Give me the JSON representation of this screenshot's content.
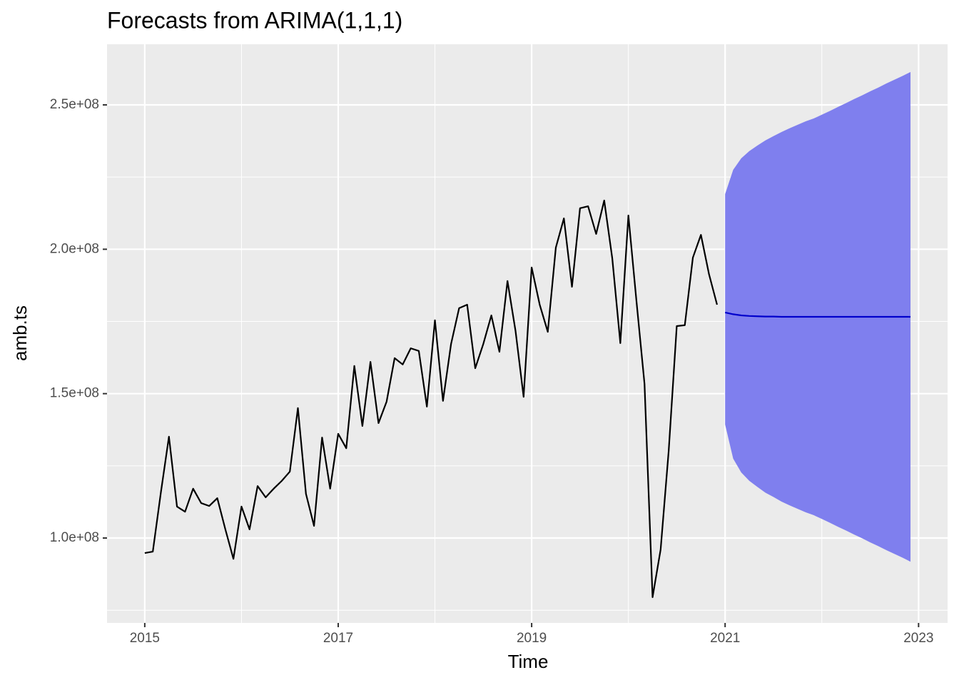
{
  "chart_data": {
    "type": "line",
    "title": "Forecasts from ARIMA(1,1,1)",
    "x_label": "Time",
    "y_label": "amb.ts",
    "xlim": [
      2014.61,
      2023.3
    ],
    "ylim": [
      70600000,
      271000000
    ],
    "xticks": [
      2015,
      2017,
      2019,
      2021,
      2023
    ],
    "yticks": [
      {
        "value": 100000000,
        "label": "1.0e+08"
      },
      {
        "value": 150000000,
        "label": "1.5e+08"
      },
      {
        "value": 200000000,
        "label": "2.0e+08"
      },
      {
        "value": 250000000,
        "label": "2.5e+08"
      }
    ],
    "grid": true,
    "color": "#000000",
    "x": [
      2015,
      2015.0833,
      2015.1667,
      2015.25,
      2015.3333,
      2015.4167,
      2015.5,
      2015.5833,
      2015.6667,
      2015.75,
      2015.8333,
      2015.9167,
      2016,
      2016.0833,
      2016.1667,
      2016.25,
      2016.3333,
      2016.4167,
      2016.5,
      2016.5833,
      2016.6667,
      2016.75,
      2016.8333,
      2016.9167,
      2017,
      2017.0833,
      2017.1667,
      2017.25,
      2017.3333,
      2017.4167,
      2017.5,
      2017.5833,
      2017.6667,
      2017.75,
      2017.8333,
      2017.9167,
      2018,
      2018.0833,
      2018.1667,
      2018.25,
      2018.3333,
      2018.4167,
      2018.5,
      2018.5833,
      2018.6667,
      2018.75,
      2018.8333,
      2018.9167,
      2019,
      2019.0833,
      2019.1667,
      2019.25,
      2019.3333,
      2019.4167,
      2019.5,
      2019.5833,
      2019.6667,
      2019.75,
      2019.8333,
      2019.9167,
      2020,
      2020.0833,
      2020.1667,
      2020.25,
      2020.3333,
      2020.4167,
      2020.5,
      2020.5833,
      2020.6667,
      2020.75,
      2020.8333,
      2020.9167
    ],
    "values": [
      94800000,
      95300000,
      115800000,
      135100000,
      110900000,
      109100000,
      117100000,
      112100000,
      111100000,
      113800000,
      103000000,
      92800000,
      110900000,
      103000000,
      118000000,
      114100000,
      117100000,
      119800000,
      123000000,
      145000000,
      115300000,
      104200000,
      134800000,
      117100000,
      136100000,
      131100000,
      159600000,
      138800000,
      161000000,
      139800000,
      147200000,
      162300000,
      160100000,
      165700000,
      164800000,
      145500000,
      175400000,
      147500000,
      167200000,
      179600000,
      180800000,
      158800000,
      167200000,
      177100000,
      164500000,
      189000000,
      171700000,
      148900000,
      193700000,
      180800000,
      171400000,
      200600000,
      210700000,
      187000000,
      214200000,
      214900000,
      205300000,
      216900000,
      196900000,
      167500000,
      211700000,
      182100000,
      153400000,
      79500000,
      96000000,
      130200000,
      173400000,
      173700000,
      197100000,
      205000000,
      191400000,
      180800000
    ],
    "forecast": {
      "color": "#0000CC",
      "band_color": "#7F7FEE",
      "x": [
        2021,
        2021.0833,
        2021.1667,
        2021.25,
        2021.3333,
        2021.4167,
        2021.5,
        2021.5833,
        2021.6667,
        2021.75,
        2021.8333,
        2021.9167,
        2022,
        2022.0833,
        2022.1667,
        2022.25,
        2022.3333,
        2022.4167,
        2022.5,
        2022.5833,
        2022.6667,
        2022.75,
        2022.8333,
        2022.9167
      ],
      "mean": [
        178100000,
        177500000,
        177100000,
        176900000,
        176800000,
        176700000,
        176700000,
        176600000,
        176600000,
        176600000,
        176600000,
        176600000,
        176600000,
        176600000,
        176600000,
        176600000,
        176600000,
        176600000,
        176600000,
        176600000,
        176600000,
        176600000,
        176600000,
        176600000
      ],
      "upper": [
        219100000,
        227500000,
        231500000,
        234000000,
        235900000,
        237700000,
        239200000,
        240600000,
        241900000,
        243100000,
        244300000,
        245300000,
        246600000,
        247900000,
        249300000,
        250600000,
        252000000,
        253300000,
        254700000,
        256000000,
        257400000,
        258700000,
        260000000,
        261400000
      ],
      "lower": [
        139300000,
        127500000,
        122700000,
        119800000,
        117700000,
        115700000,
        114200000,
        112600000,
        111300000,
        110100000,
        108900000,
        107900000,
        106600000,
        105300000,
        103900000,
        102600000,
        101200000,
        99900000,
        98500000,
        97200000,
        95800000,
        94500000,
        93200000,
        91800000
      ]
    }
  }
}
